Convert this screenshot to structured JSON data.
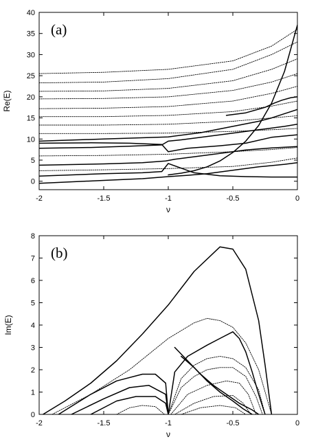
{
  "chart_data": [
    {
      "type": "line",
      "panel_label": "(a)",
      "xlabel": "ν",
      "ylabel": "Re(E)",
      "xlim": [
        -2,
        0
      ],
      "ylim": [
        -2,
        40
      ],
      "xticks": [
        "-2",
        "-1.5",
        "-1",
        "-0.5",
        "0"
      ],
      "yticks": [
        "0",
        "5",
        "10",
        "15",
        "20",
        "25",
        "30",
        "35",
        "40"
      ],
      "grid": false,
      "legend": "none",
      "line_color": "#000000",
      "series": [
        {
          "style": "solid",
          "x": [
            -2,
            -1.5,
            -1.2,
            -1.0,
            -0.85,
            -0.7,
            -0.5,
            -0.3,
            -0.1,
            0
          ],
          "y": [
            -0.5,
            0.2,
            0.6,
            1.1,
            1.4,
            1.8,
            2.6,
            3.4,
            4.0,
            4.4
          ]
        },
        {
          "style": "solid",
          "x": [
            -2,
            -1.5,
            -1.2,
            -1.05,
            -1.0,
            -0.9,
            -0.8,
            -0.6,
            -0.4,
            -0.2,
            0
          ],
          "y": [
            1.2,
            1.8,
            2.0,
            2.3,
            4.2,
            3.1,
            2.0,
            1.3,
            1.1,
            1.0,
            1.0
          ]
        },
        {
          "style": "solid",
          "x": [
            -2,
            -1.5,
            -1.2,
            -1.02,
            -0.95,
            -0.8,
            -0.6,
            -0.4,
            -0.2,
            0
          ],
          "y": [
            3.8,
            4.1,
            4.4,
            4.8,
            5.2,
            5.8,
            6.6,
            7.4,
            7.9,
            8.2
          ]
        },
        {
          "style": "solid",
          "x": [
            -2,
            -1.6,
            -1.3,
            -1.05,
            -1.0,
            -0.9,
            -0.7,
            -0.5,
            -0.3,
            -0.1,
            0
          ],
          "y": [
            7.8,
            8.0,
            8.3,
            8.6,
            9.5,
            9.8,
            10.6,
            11.4,
            12.2,
            13.0,
            13.5
          ]
        },
        {
          "style": "solid",
          "x": [
            -2,
            -1.6,
            -1.3,
            -1.05,
            -1.0,
            -0.85,
            -0.6,
            -0.4,
            -0.2,
            0
          ],
          "y": [
            9.0,
            9.1,
            9.0,
            8.7,
            7.0,
            7.8,
            8.4,
            9.0,
            10.4,
            11.0
          ]
        },
        {
          "style": "solid",
          "x": [
            -2,
            -1.5,
            -1.0,
            -0.75,
            -0.5,
            -0.3,
            -0.2,
            -0.1,
            0
          ],
          "y": [
            9.5,
            10.0,
            10.5,
            11.5,
            13.0,
            14.2,
            15.0,
            16.0,
            17.0
          ]
        },
        {
          "style": "solid",
          "x": [
            -1.0,
            -0.9,
            -0.8,
            -0.7,
            -0.6,
            -0.5,
            -0.4,
            -0.3,
            -0.2,
            -0.1,
            0
          ],
          "y": [
            1.5,
            1.9,
            2.5,
            3.4,
            4.8,
            6.8,
            9.5,
            13.2,
            18.5,
            26.0,
            37.0
          ]
        },
        {
          "style": "solid",
          "x": [
            -0.55,
            -0.4,
            -0.25,
            -0.18,
            -0.12,
            -0.05,
            0
          ],
          "y": [
            15.6,
            16.2,
            17.5,
            18.5,
            19.2,
            19.8,
            20.0
          ]
        },
        {
          "style": "dotted",
          "x": [
            -2,
            -1.5,
            -1.0,
            -0.5,
            -0.2,
            0
          ],
          "y": [
            25.5,
            25.8,
            26.5,
            28.5,
            32.0,
            36.0
          ]
        },
        {
          "style": "dotted",
          "x": [
            -2,
            -1.5,
            -1.0,
            -0.5,
            -0.2,
            0
          ],
          "y": [
            23.3,
            23.5,
            24.3,
            26.5,
            30.0,
            33.0
          ]
        },
        {
          "style": "dotted",
          "x": [
            -2,
            -1.5,
            -1.0,
            -0.5,
            -0.2,
            0
          ],
          "y": [
            21.3,
            21.4,
            22.0,
            23.8,
            26.5,
            29.0
          ]
        },
        {
          "style": "dotted",
          "x": [
            -2,
            -1.5,
            -1.0,
            -0.5,
            -0.2,
            0
          ],
          "y": [
            19.5,
            19.6,
            20.0,
            21.5,
            23.5,
            25.5
          ]
        },
        {
          "style": "dotted",
          "x": [
            -2,
            -1.5,
            -1.0,
            -0.5,
            -0.2,
            0
          ],
          "y": [
            17.2,
            17.3,
            17.7,
            19.0,
            20.8,
            22.5
          ]
        },
        {
          "style": "dotted",
          "x": [
            -2,
            -1.5,
            -1.0,
            -0.5,
            -0.2,
            0
          ],
          "y": [
            15.3,
            15.3,
            15.6,
            16.5,
            17.8,
            19.0
          ]
        },
        {
          "style": "dotted",
          "x": [
            -2,
            -1.5,
            -1.0,
            -0.5,
            -0.2,
            0
          ],
          "y": [
            13.3,
            13.3,
            13.5,
            14.2,
            15.0,
            15.5
          ]
        },
        {
          "style": "dotted",
          "x": [
            -2,
            -1.5,
            -1.0,
            -0.5,
            -0.2,
            0
          ],
          "y": [
            11.3,
            11.3,
            11.4,
            11.8,
            12.2,
            12.5
          ]
        },
        {
          "style": "dotted",
          "x": [
            -2,
            -1.5,
            -1.0,
            -0.5,
            -0.2,
            0
          ],
          "y": [
            6.0,
            6.1,
            6.4,
            7.0,
            7.5,
            8.0
          ]
        },
        {
          "style": "dotted",
          "x": [
            -2,
            -1.5,
            -1.0,
            -0.5,
            -0.2,
            0
          ],
          "y": [
            2.5,
            2.7,
            3.0,
            3.5,
            4.5,
            5.5
          ]
        }
      ]
    },
    {
      "type": "line",
      "panel_label": "(b)",
      "xlabel": "ν",
      "ylabel": "Im(E)",
      "xlim": [
        -2,
        0
      ],
      "ylim": [
        0,
        8
      ],
      "xticks": [
        "-2",
        "-1.5",
        "-1",
        "-0.5",
        "0"
      ],
      "yticks": [
        "0",
        "1",
        "2",
        "3",
        "4",
        "5",
        "6",
        "7",
        "8"
      ],
      "grid": false,
      "legend": "none",
      "line_color": "#000000",
      "series": [
        {
          "style": "solid",
          "x": [
            -1.97,
            -1.8,
            -1.6,
            -1.4,
            -1.2,
            -1.0,
            -0.8,
            -0.6,
            -0.5,
            -0.4,
            -0.3,
            -0.25,
            -0.2
          ],
          "y": [
            0,
            0.6,
            1.4,
            2.4,
            3.6,
            4.9,
            6.4,
            7.5,
            7.4,
            6.5,
            4.2,
            2.2,
            0
          ]
        },
        {
          "style": "dotted",
          "x": [
            -1.9,
            -1.6,
            -1.3,
            -1.0,
            -0.8,
            -0.7,
            -0.6,
            -0.5,
            -0.4,
            -0.3,
            -0.25,
            -0.2
          ],
          "y": [
            0,
            0.9,
            2.0,
            3.4,
            4.1,
            4.3,
            4.2,
            3.9,
            3.2,
            2.0,
            1.0,
            0
          ]
        },
        {
          "style": "solid",
          "x": [
            -1.85,
            -1.6,
            -1.4,
            -1.2,
            -1.1,
            -1.02,
            -1.0
          ],
          "y": [
            0,
            0.9,
            1.5,
            1.8,
            1.8,
            1.4,
            0
          ]
        },
        {
          "style": "solid",
          "x": [
            -1.0,
            -0.95,
            -0.85,
            -0.7,
            -0.6,
            -0.5,
            -0.45,
            -0.4,
            -0.35,
            -0.3,
            -0.25
          ],
          "y": [
            0,
            1.9,
            2.6,
            3.1,
            3.4,
            3.7,
            3.4,
            2.8,
            1.9,
            0.9,
            0
          ]
        },
        {
          "style": "solid",
          "x": [
            -1.75,
            -1.5,
            -1.3,
            -1.15,
            -1.02,
            -1.0
          ],
          "y": [
            0,
            0.7,
            1.2,
            1.3,
            0.9,
            0
          ]
        },
        {
          "style": "solid",
          "x": [
            -1.6,
            -1.4,
            -1.25,
            -1.1,
            -1.02,
            -1.0
          ],
          "y": [
            0,
            0.6,
            0.8,
            0.8,
            0.5,
            0
          ]
        },
        {
          "style": "solid",
          "x": [
            -0.95,
            -0.85,
            -0.75,
            -0.65,
            -0.55,
            -0.45,
            -0.35,
            -0.3
          ],
          "y": [
            3.0,
            2.4,
            1.8,
            1.3,
            0.9,
            0.5,
            0.2,
            0
          ]
        },
        {
          "style": "solid",
          "x": [
            -0.9,
            -0.8,
            -0.7,
            -0.6,
            -0.5,
            -0.42,
            -0.35
          ],
          "y": [
            2.6,
            2.1,
            1.5,
            1.0,
            0.6,
            0.25,
            0
          ]
        },
        {
          "style": "dotted",
          "x": [
            -1.0,
            -0.9,
            -0.8,
            -0.7,
            -0.6,
            -0.5,
            -0.4,
            -0.3,
            -0.25
          ],
          "y": [
            0,
            1.6,
            2.2,
            2.5,
            2.6,
            2.5,
            2.1,
            1.1,
            0
          ]
        },
        {
          "style": "dotted",
          "x": [
            -1.0,
            -0.9,
            -0.8,
            -0.7,
            -0.6,
            -0.5,
            -0.4,
            -0.32,
            -0.27
          ],
          "y": [
            0,
            1.2,
            1.7,
            2.0,
            2.1,
            2.1,
            1.7,
            0.8,
            0
          ]
        },
        {
          "style": "dotted",
          "x": [
            -0.98,
            -0.85,
            -0.7,
            -0.55,
            -0.45,
            -0.38,
            -0.32
          ],
          "y": [
            0,
            0.9,
            1.3,
            1.5,
            1.4,
            0.9,
            0
          ]
        },
        {
          "style": "dotted",
          "x": [
            -0.95,
            -0.8,
            -0.65,
            -0.5,
            -0.42,
            -0.36
          ],
          "y": [
            0,
            0.5,
            0.8,
            0.85,
            0.5,
            0
          ]
        },
        {
          "style": "dotted",
          "x": [
            -1.4,
            -1.3,
            -1.2,
            -1.1,
            -1.03
          ],
          "y": [
            0,
            0.3,
            0.4,
            0.35,
            0
          ]
        },
        {
          "style": "dotted",
          "x": [
            -0.9,
            -0.75,
            -0.6,
            -0.48,
            -0.4
          ],
          "y": [
            0,
            0.3,
            0.4,
            0.3,
            0
          ]
        }
      ]
    }
  ]
}
